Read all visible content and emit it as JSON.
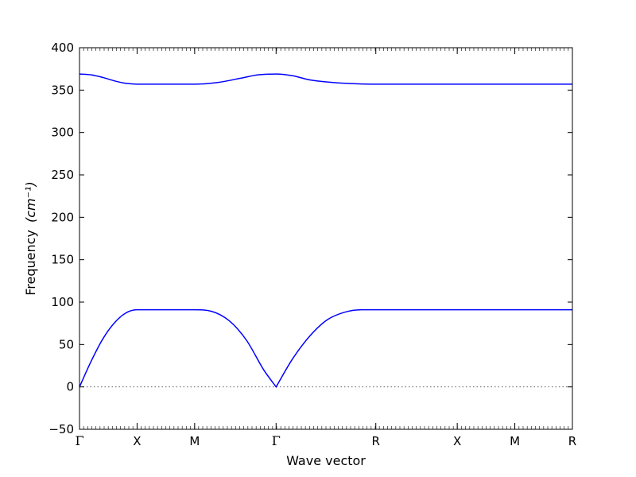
{
  "chart_data": {
    "type": "line",
    "title": "",
    "xlabel": "Wave vector",
    "ylabel": "Frequency",
    "ylabel_unit": "(cm⁻¹)",
    "ylim": [
      -50,
      400
    ],
    "yticks": [
      -50,
      0,
      50,
      100,
      150,
      200,
      250,
      300,
      350,
      400
    ],
    "grid": false,
    "zero_line": {
      "value": 0,
      "style": "dotted"
    },
    "line_color": "#0000ff",
    "high_symmetry_points": [
      {
        "label": "Γ",
        "x": 0.0
      },
      {
        "label": "X",
        "x": 0.5
      },
      {
        "label": "M",
        "x": 1.0
      },
      {
        "label": "Γ",
        "x": 1.707
      },
      {
        "label": "R",
        "x": 2.573
      },
      {
        "label": "X",
        "x": 3.28
      },
      {
        "label": "M",
        "x": 3.78
      },
      {
        "label": "R",
        "x": 4.28
      }
    ],
    "xlim": [
      0,
      4.28
    ],
    "series": [
      {
        "x": [
          0.0,
          0.1,
          0.2,
          0.3,
          0.4,
          0.5,
          0.75,
          1.0,
          1.15,
          1.3,
          1.45,
          1.6,
          1.707,
          1.85,
          2.0,
          2.15,
          2.3,
          2.45,
          2.573,
          3.28,
          3.78,
          4.28
        ],
        "values": [
          0,
          30,
          56,
          75,
          87,
          91,
          91,
          91,
          89,
          78,
          55,
          20,
          0,
          33,
          60,
          79,
          88,
          91,
          91,
          91,
          91,
          91
        ]
      },
      {
        "x": [
          0.0,
          0.1,
          0.2,
          0.3,
          0.4,
          0.5,
          0.75,
          1.0,
          1.2,
          1.4,
          1.55,
          1.707,
          1.85,
          2.0,
          2.2,
          2.4,
          2.573,
          3.28,
          3.78,
          4.28
        ],
        "values": [
          369,
          368,
          365,
          361,
          358,
          357,
          357,
          357,
          359,
          364,
          368,
          369,
          367,
          362,
          359,
          357.5,
          357,
          357,
          357,
          357
        ]
      }
    ]
  }
}
